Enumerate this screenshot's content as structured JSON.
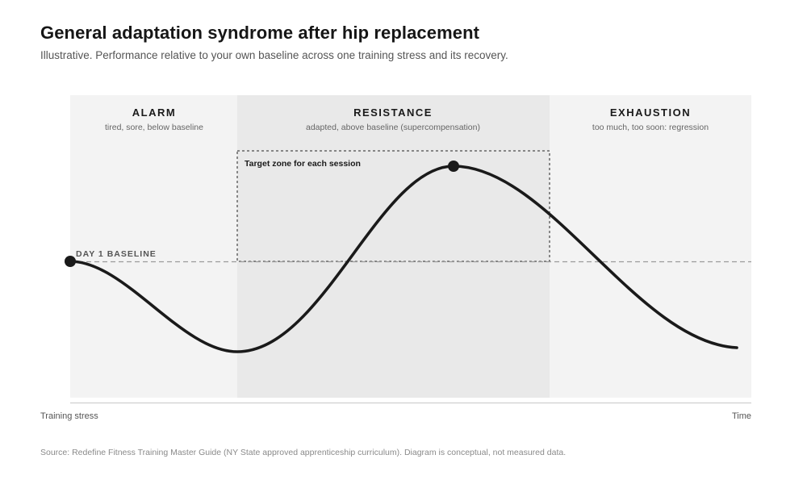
{
  "header": {
    "title": "General adaptation syndrome after hip replacement",
    "subtitle": "Illustrative. Performance relative to your own baseline across one training stress and its recovery."
  },
  "phases": [
    {
      "name": "ALARM",
      "description": "tired, sore, below baseline",
      "fill": "#f3f3f3"
    },
    {
      "name": "RESISTANCE",
      "description": "adapted, above baseline (supercompensation)",
      "fill": "#e9e9e9"
    },
    {
      "name": "EXHAUSTION",
      "description": "too much, too soon: regression",
      "fill": "#f3f3f3"
    }
  ],
  "baseline": {
    "label": "DAY 1 BASELINE",
    "color": "#9a9a9a"
  },
  "target_zone": {
    "label": "Target zone for each session"
  },
  "axis": {
    "left_label": "Training stress",
    "right_label": "Time"
  },
  "curve": {
    "color": "#1a1a1a"
  },
  "footer": {
    "source": "Source: Redefine Fitness Training Master Guide (NY State approved apprenticeship curriculum). Diagram is conceptual, not measured data."
  }
}
